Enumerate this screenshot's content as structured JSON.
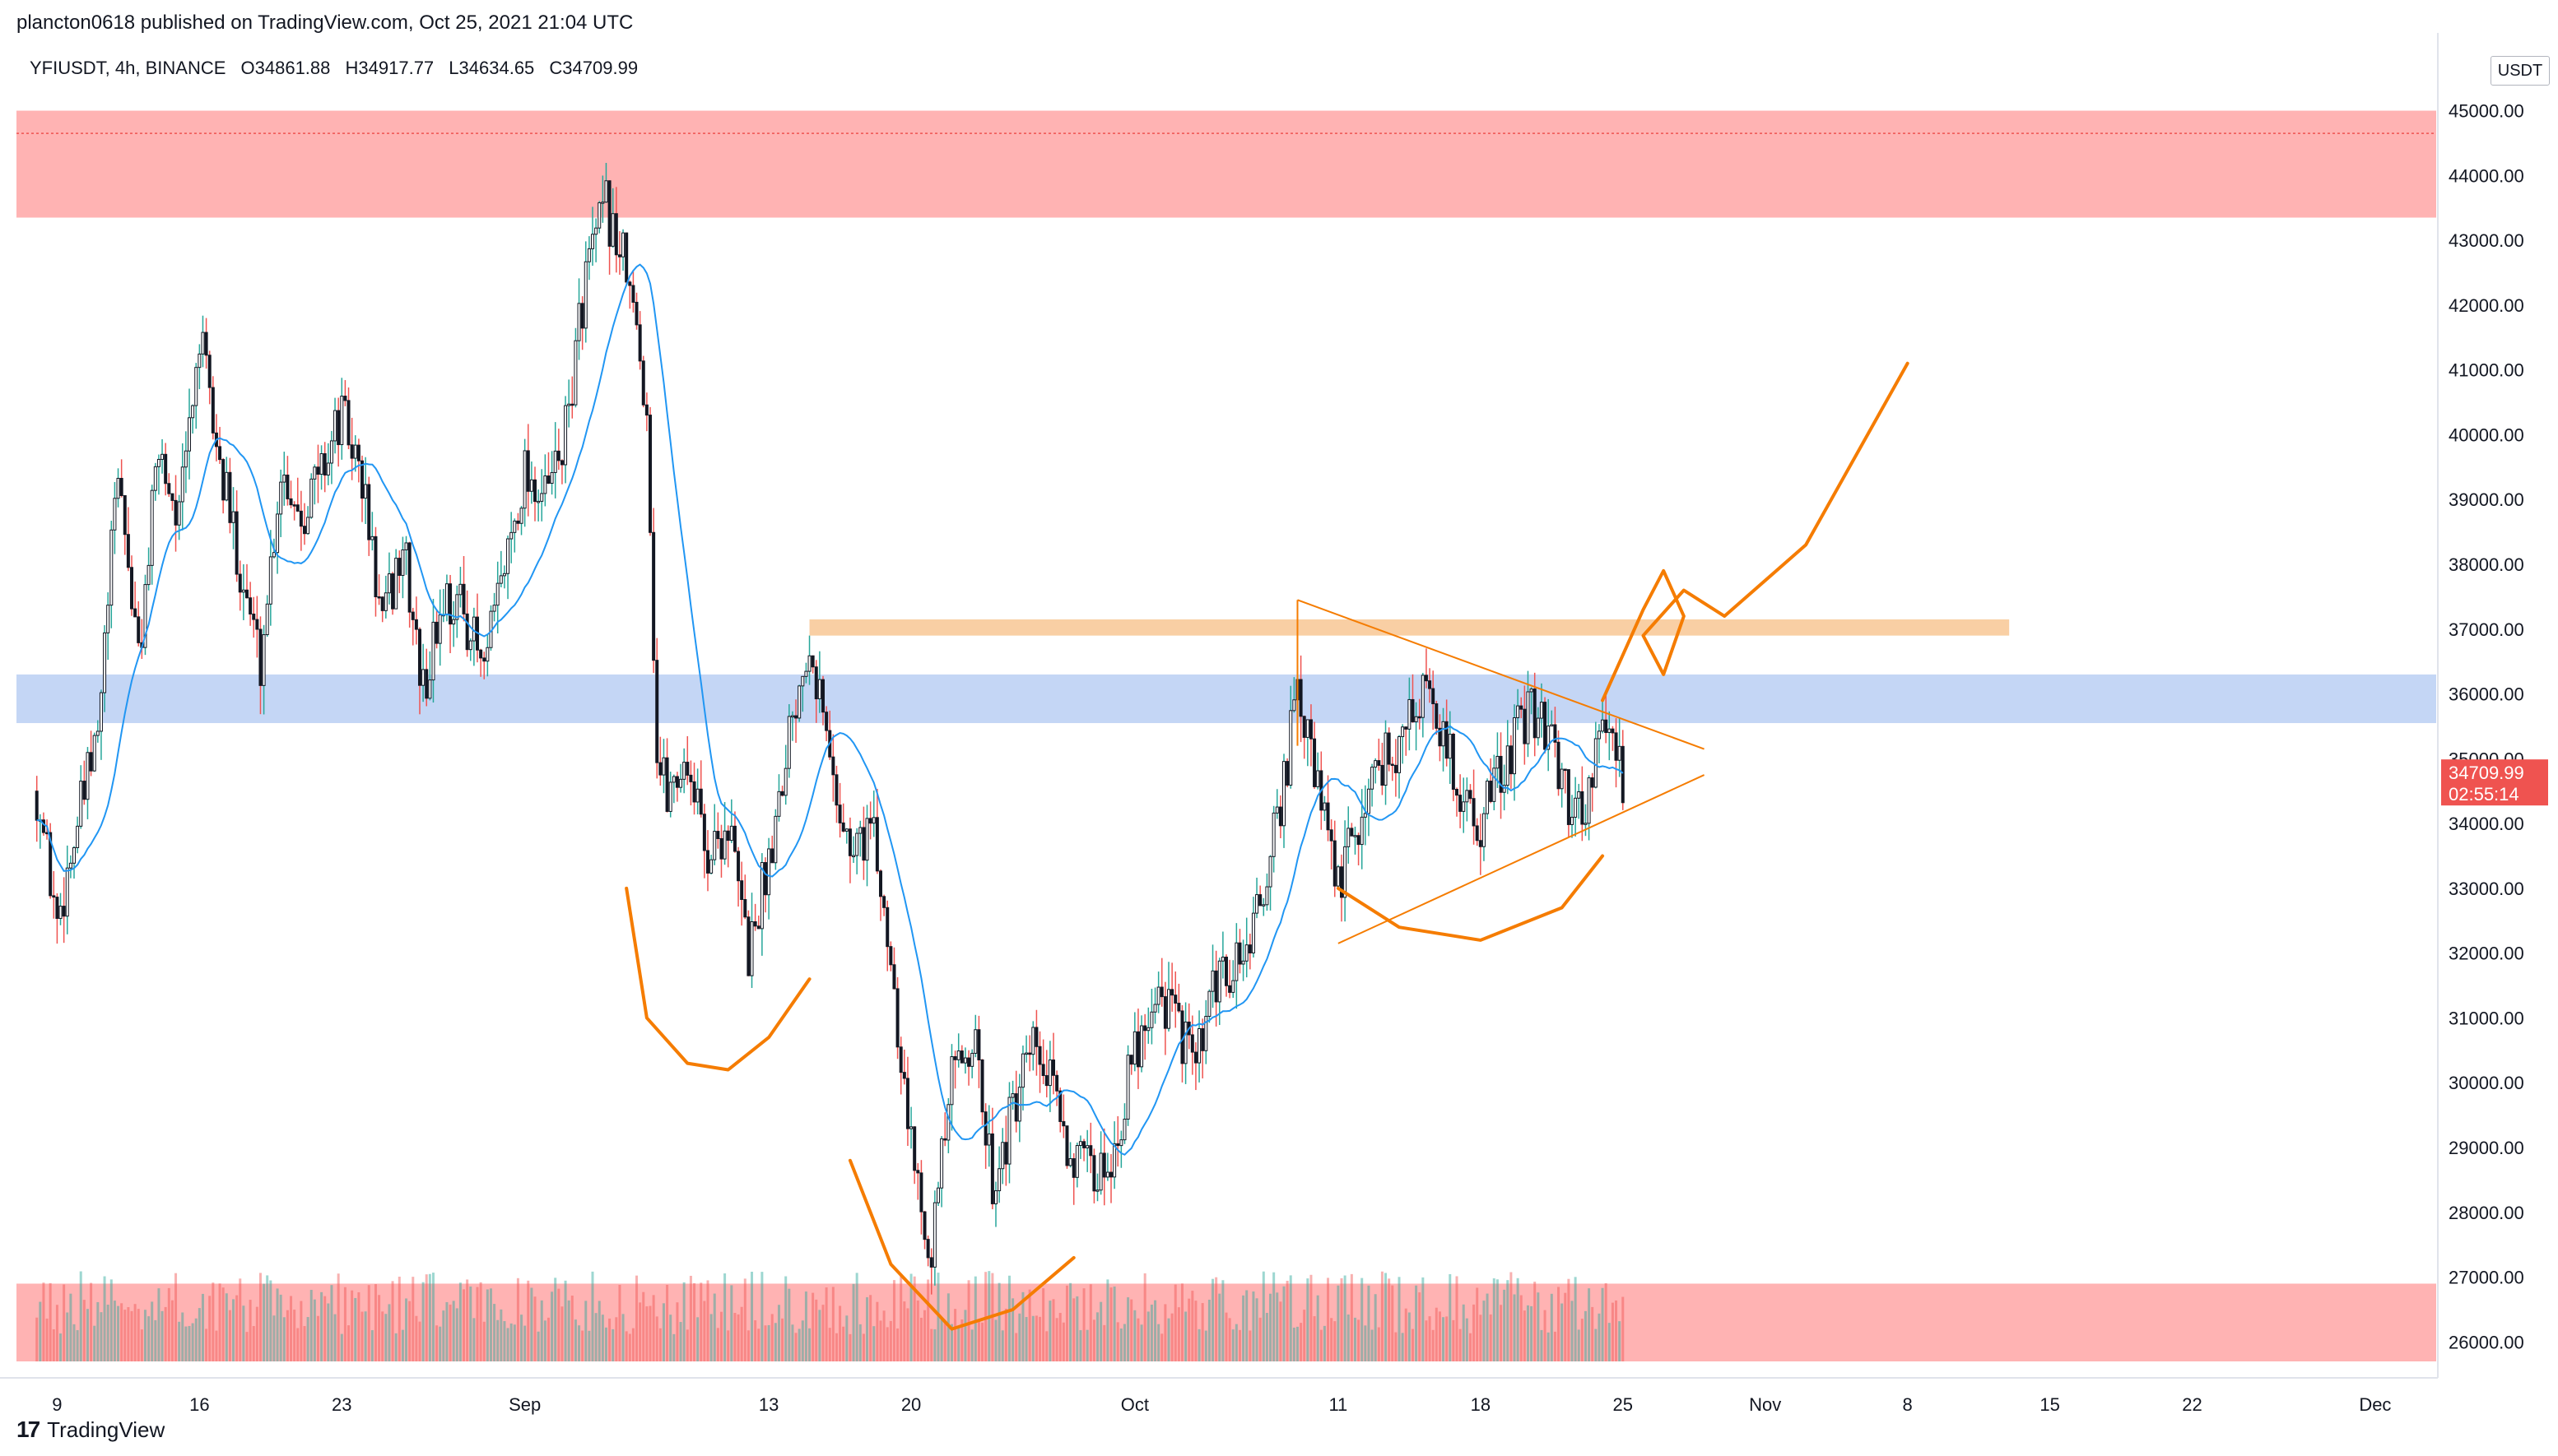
{
  "header": {
    "publisher": "plancton0618 published on TradingView.com, Oct 25, 2021 21:04 UTC"
  },
  "symbol": {
    "name": "YFIUSDT, 4h, BINANCE",
    "open": "O34861.88",
    "high": "H34917.77",
    "low": "L34634.65",
    "close": "C34709.99"
  },
  "price_axis": {
    "unit": "USDT",
    "current_price": "34709.99",
    "countdown": "02:55:14",
    "current_color": "#ef5350"
  },
  "footer": {
    "brand": "TradingView",
    "logo_text": "17"
  },
  "colors": {
    "up": "#26a69a",
    "down": "#ef5350",
    "candle": "#131722",
    "ma": "#2196f3",
    "annotation": "#f57c00",
    "supply_zone": "#ffb3b3",
    "support_zone": "#c4d6f5",
    "resistance_band": "#f9cfa4"
  },
  "chart_data": {
    "type": "candlestick",
    "title": "YFIUSDT, 4h, BINANCE",
    "ylim": [
      25700,
      46200
    ],
    "ylabel": "",
    "xlabel": "",
    "grid": false,
    "y_ticks": [
      26000,
      27000,
      28000,
      29000,
      30000,
      31000,
      32000,
      33000,
      34000,
      35000,
      36000,
      37000,
      38000,
      39000,
      40000,
      41000,
      42000,
      43000,
      44000,
      45000
    ],
    "y_tick_labels": [
      "26000.00",
      "27000.00",
      "28000.00",
      "29000.00",
      "30000.00",
      "31000.00",
      "32000.00",
      "33000.00",
      "34000.00",
      "35000.00",
      "36000.00",
      "37000.00",
      "38000.00",
      "39000.00",
      "40000.00",
      "41000.00",
      "42000.00",
      "43000.00",
      "44000.00",
      "45000.00"
    ],
    "x_ticks": [
      {
        "label": "9",
        "date": "2021-08-09"
      },
      {
        "label": "16",
        "date": "2021-08-16"
      },
      {
        "label": "23",
        "date": "2021-08-23"
      },
      {
        "label": "Sep",
        "date": "2021-09-01"
      },
      {
        "label": "13",
        "date": "2021-09-13"
      },
      {
        "label": "20",
        "date": "2021-09-20"
      },
      {
        "label": "Oct",
        "date": "2021-10-01"
      },
      {
        "label": "11",
        "date": "2021-10-11"
      },
      {
        "label": "18",
        "date": "2021-10-18"
      },
      {
        "label": "25",
        "date": "2021-10-25"
      },
      {
        "label": "Nov",
        "date": "2021-11-01"
      },
      {
        "label": "8",
        "date": "2021-11-08"
      },
      {
        "label": "15",
        "date": "2021-11-15"
      },
      {
        "label": "22",
        "date": "2021-11-22"
      },
      {
        "label": "Dec",
        "date": "2021-12-01"
      }
    ],
    "price_path": [
      [
        "2021-08-08",
        34500
      ],
      [
        "2021-08-09",
        32500
      ],
      [
        "2021-08-10",
        34000
      ],
      [
        "2021-08-11",
        35300
      ],
      [
        "2021-08-12",
        39500
      ],
      [
        "2021-08-13",
        36500
      ],
      [
        "2021-08-14",
        39800
      ],
      [
        "2021-08-15",
        38700
      ],
      [
        "2021-08-16",
        41500
      ],
      [
        "2021-08-17",
        39500
      ],
      [
        "2021-08-18",
        38000
      ],
      [
        "2021-08-19",
        36500
      ],
      [
        "2021-08-20",
        39500
      ],
      [
        "2021-08-21",
        38800
      ],
      [
        "2021-08-22",
        39500
      ],
      [
        "2021-08-23",
        40300
      ],
      [
        "2021-08-24",
        39300
      ],
      [
        "2021-08-25",
        37000
      ],
      [
        "2021-08-26",
        38300
      ],
      [
        "2021-08-27",
        36000
      ],
      [
        "2021-08-28",
        37500
      ],
      [
        "2021-08-29",
        37300
      ],
      [
        "2021-08-30",
        36300
      ],
      [
        "2021-08-31",
        38000
      ],
      [
        "2021-09-01",
        39500
      ],
      [
        "2021-09-02",
        39000
      ],
      [
        "2021-09-03",
        40000
      ],
      [
        "2021-09-04",
        42500
      ],
      [
        "2021-09-05",
        43500
      ],
      [
        "2021-09-06",
        42500
      ],
      [
        "2021-09-07",
        40500
      ],
      [
        "2021-09-07T12",
        35000
      ],
      [
        "2021-09-08",
        34500
      ],
      [
        "2021-09-09",
        35000
      ],
      [
        "2021-09-10",
        33500
      ],
      [
        "2021-09-11",
        34000
      ],
      [
        "2021-09-12",
        32000
      ],
      [
        "2021-09-13",
        33500
      ],
      [
        "2021-09-14",
        35500
      ],
      [
        "2021-09-15",
        37000
      ],
      [
        "2021-09-16",
        35000
      ],
      [
        "2021-09-17",
        33500
      ],
      [
        "2021-09-18",
        34000
      ],
      [
        "2021-09-19",
        32000
      ],
      [
        "2021-09-20",
        29000
      ],
      [
        "2021-09-21",
        27500
      ],
      [
        "2021-09-22",
        30000
      ],
      [
        "2021-09-23",
        30800
      ],
      [
        "2021-09-24",
        28500
      ],
      [
        "2021-09-25",
        29500
      ],
      [
        "2021-09-26",
        30500
      ],
      [
        "2021-09-27",
        29800
      ],
      [
        "2021-09-28",
        28800
      ],
      [
        "2021-09-29",
        28500
      ],
      [
        "2021-09-30",
        29000
      ],
      [
        "2021-10-01",
        30500
      ],
      [
        "2021-10-02",
        31500
      ],
      [
        "2021-10-03",
        31000
      ],
      [
        "2021-10-04",
        30200
      ],
      [
        "2021-10-05",
        31500
      ],
      [
        "2021-10-06",
        31800
      ],
      [
        "2021-10-07",
        32500
      ],
      [
        "2021-10-08",
        34000
      ],
      [
        "2021-10-09",
        36000
      ],
      [
        "2021-10-10",
        34500
      ],
      [
        "2021-10-11",
        33000
      ],
      [
        "2021-10-12",
        34000
      ],
      [
        "2021-10-13",
        35000
      ],
      [
        "2021-10-14",
        35200
      ],
      [
        "2021-10-15",
        36000
      ],
      [
        "2021-10-16",
        35500
      ],
      [
        "2021-10-17",
        34500
      ],
      [
        "2021-10-18",
        34000
      ],
      [
        "2021-10-19",
        34800
      ],
      [
        "2021-10-20",
        35500
      ],
      [
        "2021-10-21",
        35800
      ],
      [
        "2021-10-22",
        34500
      ],
      [
        "2021-10-23",
        34200
      ],
      [
        "2021-10-24",
        35500
      ],
      [
        "2021-10-25",
        34710
      ]
    ]
  }
}
